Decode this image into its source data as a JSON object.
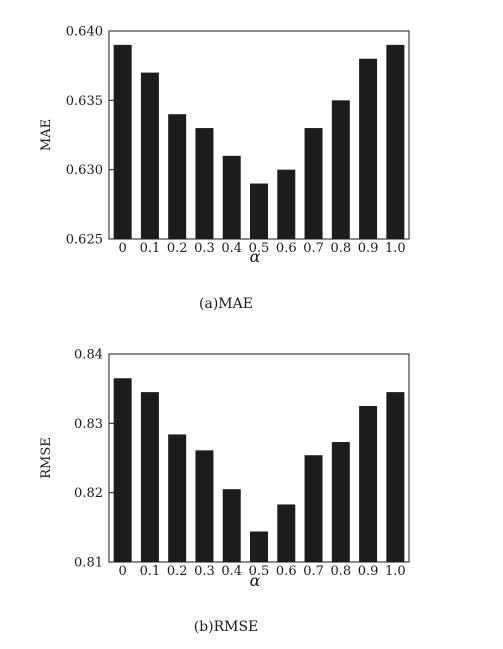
{
  "chart_data": [
    {
      "type": "bar",
      "caption": "(a)MAE",
      "xlabel": "α",
      "ylabel": "MAE",
      "categories": [
        "0",
        "0.1",
        "0.2",
        "0.3",
        "0.4",
        "0.5",
        "0.6",
        "0.7",
        "0.8",
        "0.9",
        "1.0"
      ],
      "values": [
        0.639,
        0.637,
        0.634,
        0.633,
        0.631,
        0.629,
        0.63,
        0.633,
        0.635,
        0.638,
        0.639
      ],
      "ylim": [
        0.625,
        0.64
      ],
      "yticks": [
        "0.625",
        "0.630",
        "0.635",
        "0.640"
      ],
      "bar_color": "#1c1c1c",
      "grid": false
    },
    {
      "type": "bar",
      "caption": "(b)RMSE",
      "xlabel": "α",
      "ylabel": "RMSE",
      "categories": [
        "0",
        "0.1",
        "0.2",
        "0.3",
        "0.4",
        "0.5",
        "0.6",
        "0.7",
        "0.8",
        "0.9",
        "1.0"
      ],
      "values": [
        0.8365,
        0.8345,
        0.8284,
        0.8261,
        0.8205,
        0.8144,
        0.8183,
        0.8254,
        0.8273,
        0.8325,
        0.8345
      ],
      "ylim": [
        0.81,
        0.84
      ],
      "yticks": [
        "0.81",
        "0.82",
        "0.83",
        "0.84"
      ],
      "bar_color": "#1c1c1c",
      "grid": false
    }
  ]
}
